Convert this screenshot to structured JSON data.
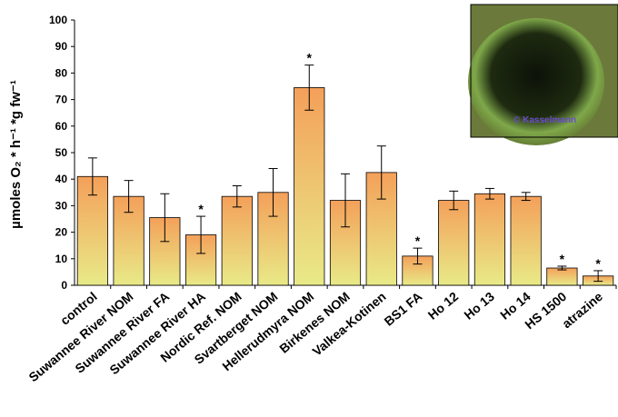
{
  "chart_data": {
    "type": "bar",
    "y_label": "µmoles O₂ * h⁻¹ *g fw⁻¹",
    "categories": [
      "control",
      "Suwannee River NOM",
      "Suwannee River FA",
      "Suwannee River HA",
      "Nordic Ref. NOM",
      "Svartberget NOM",
      "Hellerudmyra NOM",
      "Birkenes NOM",
      "Valkea-Kotinen",
      "BS1 FA",
      "Ho 12",
      "Ho 13",
      "Ho 14",
      "HS 1500",
      "atrazine"
    ],
    "values": [
      41,
      33.5,
      25.5,
      19,
      33.5,
      35,
      74.5,
      32,
      42.5,
      11,
      32,
      34.5,
      33.5,
      6.5,
      3.5
    ],
    "errors": [
      7,
      6,
      9,
      7,
      4,
      9,
      8.5,
      10,
      10,
      3,
      3.5,
      2,
      1.5,
      0.7,
      2
    ],
    "significance": [
      null,
      null,
      null,
      "*",
      null,
      null,
      "*",
      null,
      null,
      "*",
      null,
      null,
      null,
      "*",
      "*"
    ],
    "colors": {
      "top": "#f4a05a",
      "bottom": "#e8ea88"
    },
    "ylim": [
      0,
      100
    ],
    "yticks": [
      0,
      10,
      20,
      30,
      40,
      50,
      60,
      70,
      80,
      90,
      100
    ],
    "inset_caption": "© Kasselmann"
  }
}
